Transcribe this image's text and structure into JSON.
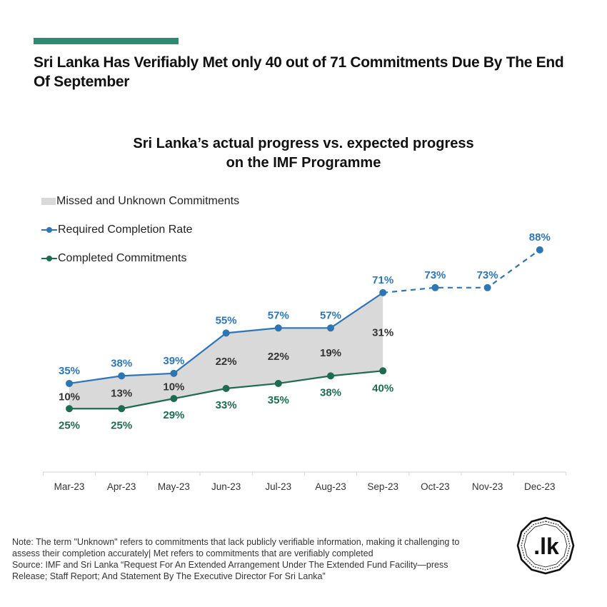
{
  "headline": "Sri Lanka Has Verifiably Met only 40 out of 71 Commitments Due By The End Of September",
  "colors": {
    "accent": "#2a8c70",
    "required": "#2e75b6",
    "completed": "#1d6b50",
    "gap_area": "#d9d9d9",
    "gap_label": "#333333"
  },
  "chart_data": {
    "type": "line",
    "title": "Sri Lanka’s actual progress vs. expected progress on the IMF Programme",
    "title_lines": [
      "Sri Lanka’s actual progress vs. expected progress",
      "on the IMF Programme"
    ],
    "xlabel": "",
    "ylabel": "",
    "ylim": [
      0,
      100
    ],
    "grid": false,
    "legend_position": "top-left",
    "categories": [
      "Mar-23",
      "Apr-23",
      "May-23",
      "Jun-23",
      "Jul-23",
      "Aug-23",
      "Sep-23",
      "Oct-23",
      "Nov-23",
      "Dec-23"
    ],
    "legend": [
      {
        "name": "Missed and Unknown Commitments",
        "kind": "area"
      },
      {
        "name": "Required Completion Rate",
        "kind": "line"
      },
      {
        "name": "Completed Commitments",
        "kind": "line"
      }
    ],
    "series": [
      {
        "name": "Required Completion Rate",
        "values": [
          35,
          38,
          39,
          55,
          57,
          57,
          71,
          73,
          73,
          88
        ],
        "labels": [
          "35%",
          "38%",
          "39%",
          "55%",
          "57%",
          "57%",
          "71%",
          "73%",
          "73%",
          "88%"
        ],
        "projected_from_index": 6
      },
      {
        "name": "Completed Commitments",
        "values": [
          25,
          25,
          29,
          33,
          35,
          38,
          40,
          null,
          null,
          null
        ],
        "labels": [
          "25%",
          "25%",
          "29%",
          "33%",
          "35%",
          "38%",
          "40%",
          null,
          null,
          null
        ]
      },
      {
        "name": "Missed and Unknown Commitments",
        "values": [
          10,
          13,
          10,
          22,
          22,
          19,
          31,
          null,
          null,
          null
        ],
        "labels": [
          "10%",
          "13%",
          "10%",
          "22%",
          "22%",
          "19%",
          "31%",
          null,
          null,
          null
        ]
      }
    ]
  },
  "footnote": {
    "note": "Note: The term \"Unknown\" refers to commitments that lack publicly verifiable information, making it challenging to assess their completion accurately| Met refers to commitments that are verifiably completed",
    "source": "Source: IMF and Sri Lanka “Request For An Extended Arrangement Under The Extended Fund Facility—press Release; Staff Report; And Statement By The Executive Director For Sri Lanka”"
  },
  "logo": {
    "text": ".lk"
  }
}
